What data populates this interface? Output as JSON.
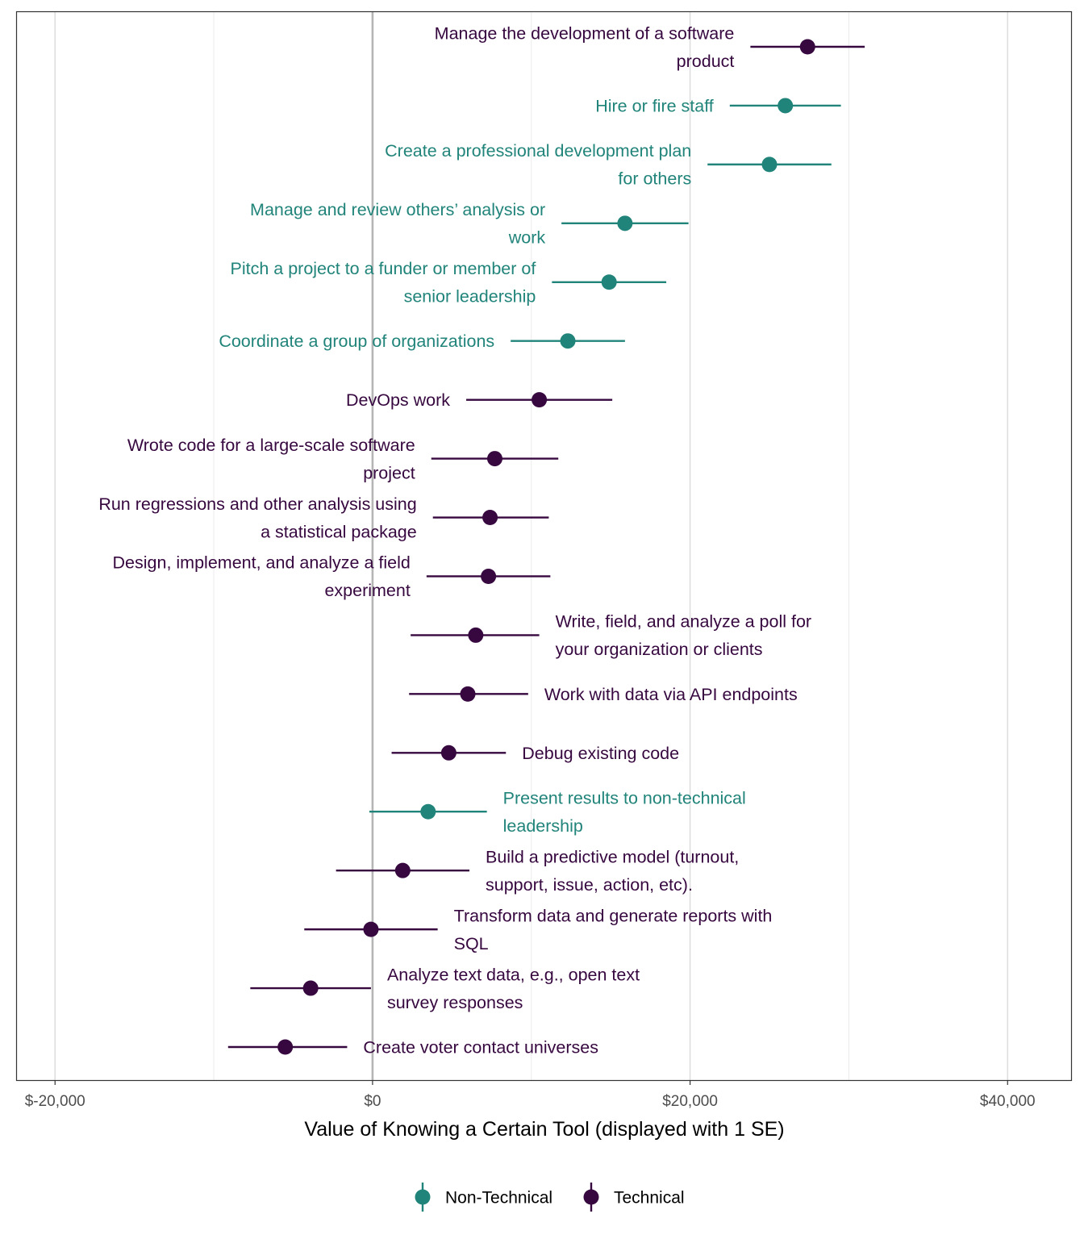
{
  "chart_data": {
    "type": "scatter",
    "title": "",
    "xlabel": "Value of Knowing a Certain Tool (displayed with 1 SE)",
    "ylabel": "",
    "xlim": [
      -22400,
      44000
    ],
    "x_ticks": [
      -20000,
      0,
      20000,
      40000
    ],
    "x_tick_labels": [
      "$-20,000",
      "$0",
      "$20,000",
      "$40,000"
    ],
    "minor_gridlines": [
      -10000,
      10000,
      30000
    ],
    "zero_line": 0,
    "grid": true,
    "legend_position": "bottom",
    "colors": {
      "Non-Technical": "#21847a",
      "Technical": "#36083f"
    },
    "series": [
      {
        "name": "Non-Technical",
        "color": "#21847a"
      },
      {
        "name": "Technical",
        "color": "#36083f"
      }
    ],
    "items": [
      {
        "label": "Manage the development of a software product",
        "lines": [
          "Manage the development of a software",
          "product"
        ],
        "category": "Technical",
        "estimate": 27400,
        "low": 23800,
        "high": 31000,
        "side": "left"
      },
      {
        "label": "Hire or fire staff",
        "lines": [
          "Hire or fire staff"
        ],
        "category": "Non-Technical",
        "estimate": 26000,
        "low": 22500,
        "high": 29500,
        "side": "left"
      },
      {
        "label": "Create a professional development plan for others",
        "lines": [
          "Create a professional development plan",
          "for others"
        ],
        "category": "Non-Technical",
        "estimate": 25000,
        "low": 21100,
        "high": 28900,
        "side": "left"
      },
      {
        "label": "Manage and review others' analysis or work",
        "lines": [
          "Manage and review others’ analysis or",
          "work"
        ],
        "category": "Non-Technical",
        "estimate": 15900,
        "low": 11900,
        "high": 19900,
        "side": "left"
      },
      {
        "label": "Pitch a project to a funder or member of senior leadership",
        "lines": [
          "Pitch a project to a funder or member of",
          "senior leadership"
        ],
        "category": "Non-Technical",
        "estimate": 14900,
        "low": 11300,
        "high": 18500,
        "side": "left"
      },
      {
        "label": "Coordinate a group of organizations",
        "lines": [
          "Coordinate a group of organizations"
        ],
        "category": "Non-Technical",
        "estimate": 12300,
        "low": 8700,
        "high": 15900,
        "side": "left"
      },
      {
        "label": "DevOps work",
        "lines": [
          "DevOps work"
        ],
        "category": "Technical",
        "estimate": 10500,
        "low": 5900,
        "high": 15100,
        "side": "left"
      },
      {
        "label": "Wrote code for a large-scale software project",
        "lines": [
          "Wrote code for a large-scale software",
          "project"
        ],
        "category": "Technical",
        "estimate": 7700,
        "low": 3700,
        "high": 11700,
        "side": "left"
      },
      {
        "label": "Run regressions and other analysis using a statistical package",
        "lines": [
          "Run regressions and other analysis using",
          "a statistical package"
        ],
        "category": "Technical",
        "estimate": 7400,
        "low": 3800,
        "high": 11100,
        "side": "left"
      },
      {
        "label": "Design, implement, and analyze a field experiment",
        "lines": [
          "Design, implement, and analyze a field",
          "experiment"
        ],
        "category": "Technical",
        "estimate": 7300,
        "low": 3400,
        "high": 11200,
        "side": "left"
      },
      {
        "label": "Write, field, and analyze a poll for your organization or clients",
        "lines": [
          "Write, field, and analyze a poll for",
          "your organization or clients"
        ],
        "category": "Technical",
        "estimate": 6500,
        "low": 2400,
        "high": 10500,
        "side": "right"
      },
      {
        "label": "Work with data via API endpoints",
        "lines": [
          "Work with data via API endpoints"
        ],
        "category": "Technical",
        "estimate": 6000,
        "low": 2300,
        "high": 9800,
        "side": "right"
      },
      {
        "label": "Debug existing code",
        "lines": [
          "Debug existing code"
        ],
        "category": "Technical",
        "estimate": 4800,
        "low": 1200,
        "high": 8400,
        "side": "right"
      },
      {
        "label": "Present results to non-technical leadership",
        "lines": [
          "Present results to non-technical",
          "leadership"
        ],
        "category": "Non-Technical",
        "estimate": 3500,
        "low": -200,
        "high": 7200,
        "side": "right"
      },
      {
        "label": "Build a predictive model (turnout, support, issue, action, etc).",
        "lines": [
          "Build a predictive model (turnout,",
          "support, issue, action, etc)."
        ],
        "category": "Technical",
        "estimate": 1900,
        "low": -2300,
        "high": 6100,
        "side": "right"
      },
      {
        "label": "Transform data and generate reports with SQL",
        "lines": [
          "Transform data and generate reports with",
          "SQL"
        ],
        "category": "Technical",
        "estimate": -100,
        "low": -4300,
        "high": 4100,
        "side": "right"
      },
      {
        "label": "Analyze text data, e.g., open text survey responses",
        "lines": [
          "Analyze text data, e.g., open text",
          "survey responses"
        ],
        "category": "Technical",
        "estimate": -3900,
        "low": -7700,
        "high": -100,
        "side": "right"
      },
      {
        "label": "Create voter contact universes",
        "lines": [
          "Create voter contact universes"
        ],
        "category": "Technical",
        "estimate": -5500,
        "low": -9100,
        "high": -1600,
        "side": "right"
      }
    ]
  }
}
